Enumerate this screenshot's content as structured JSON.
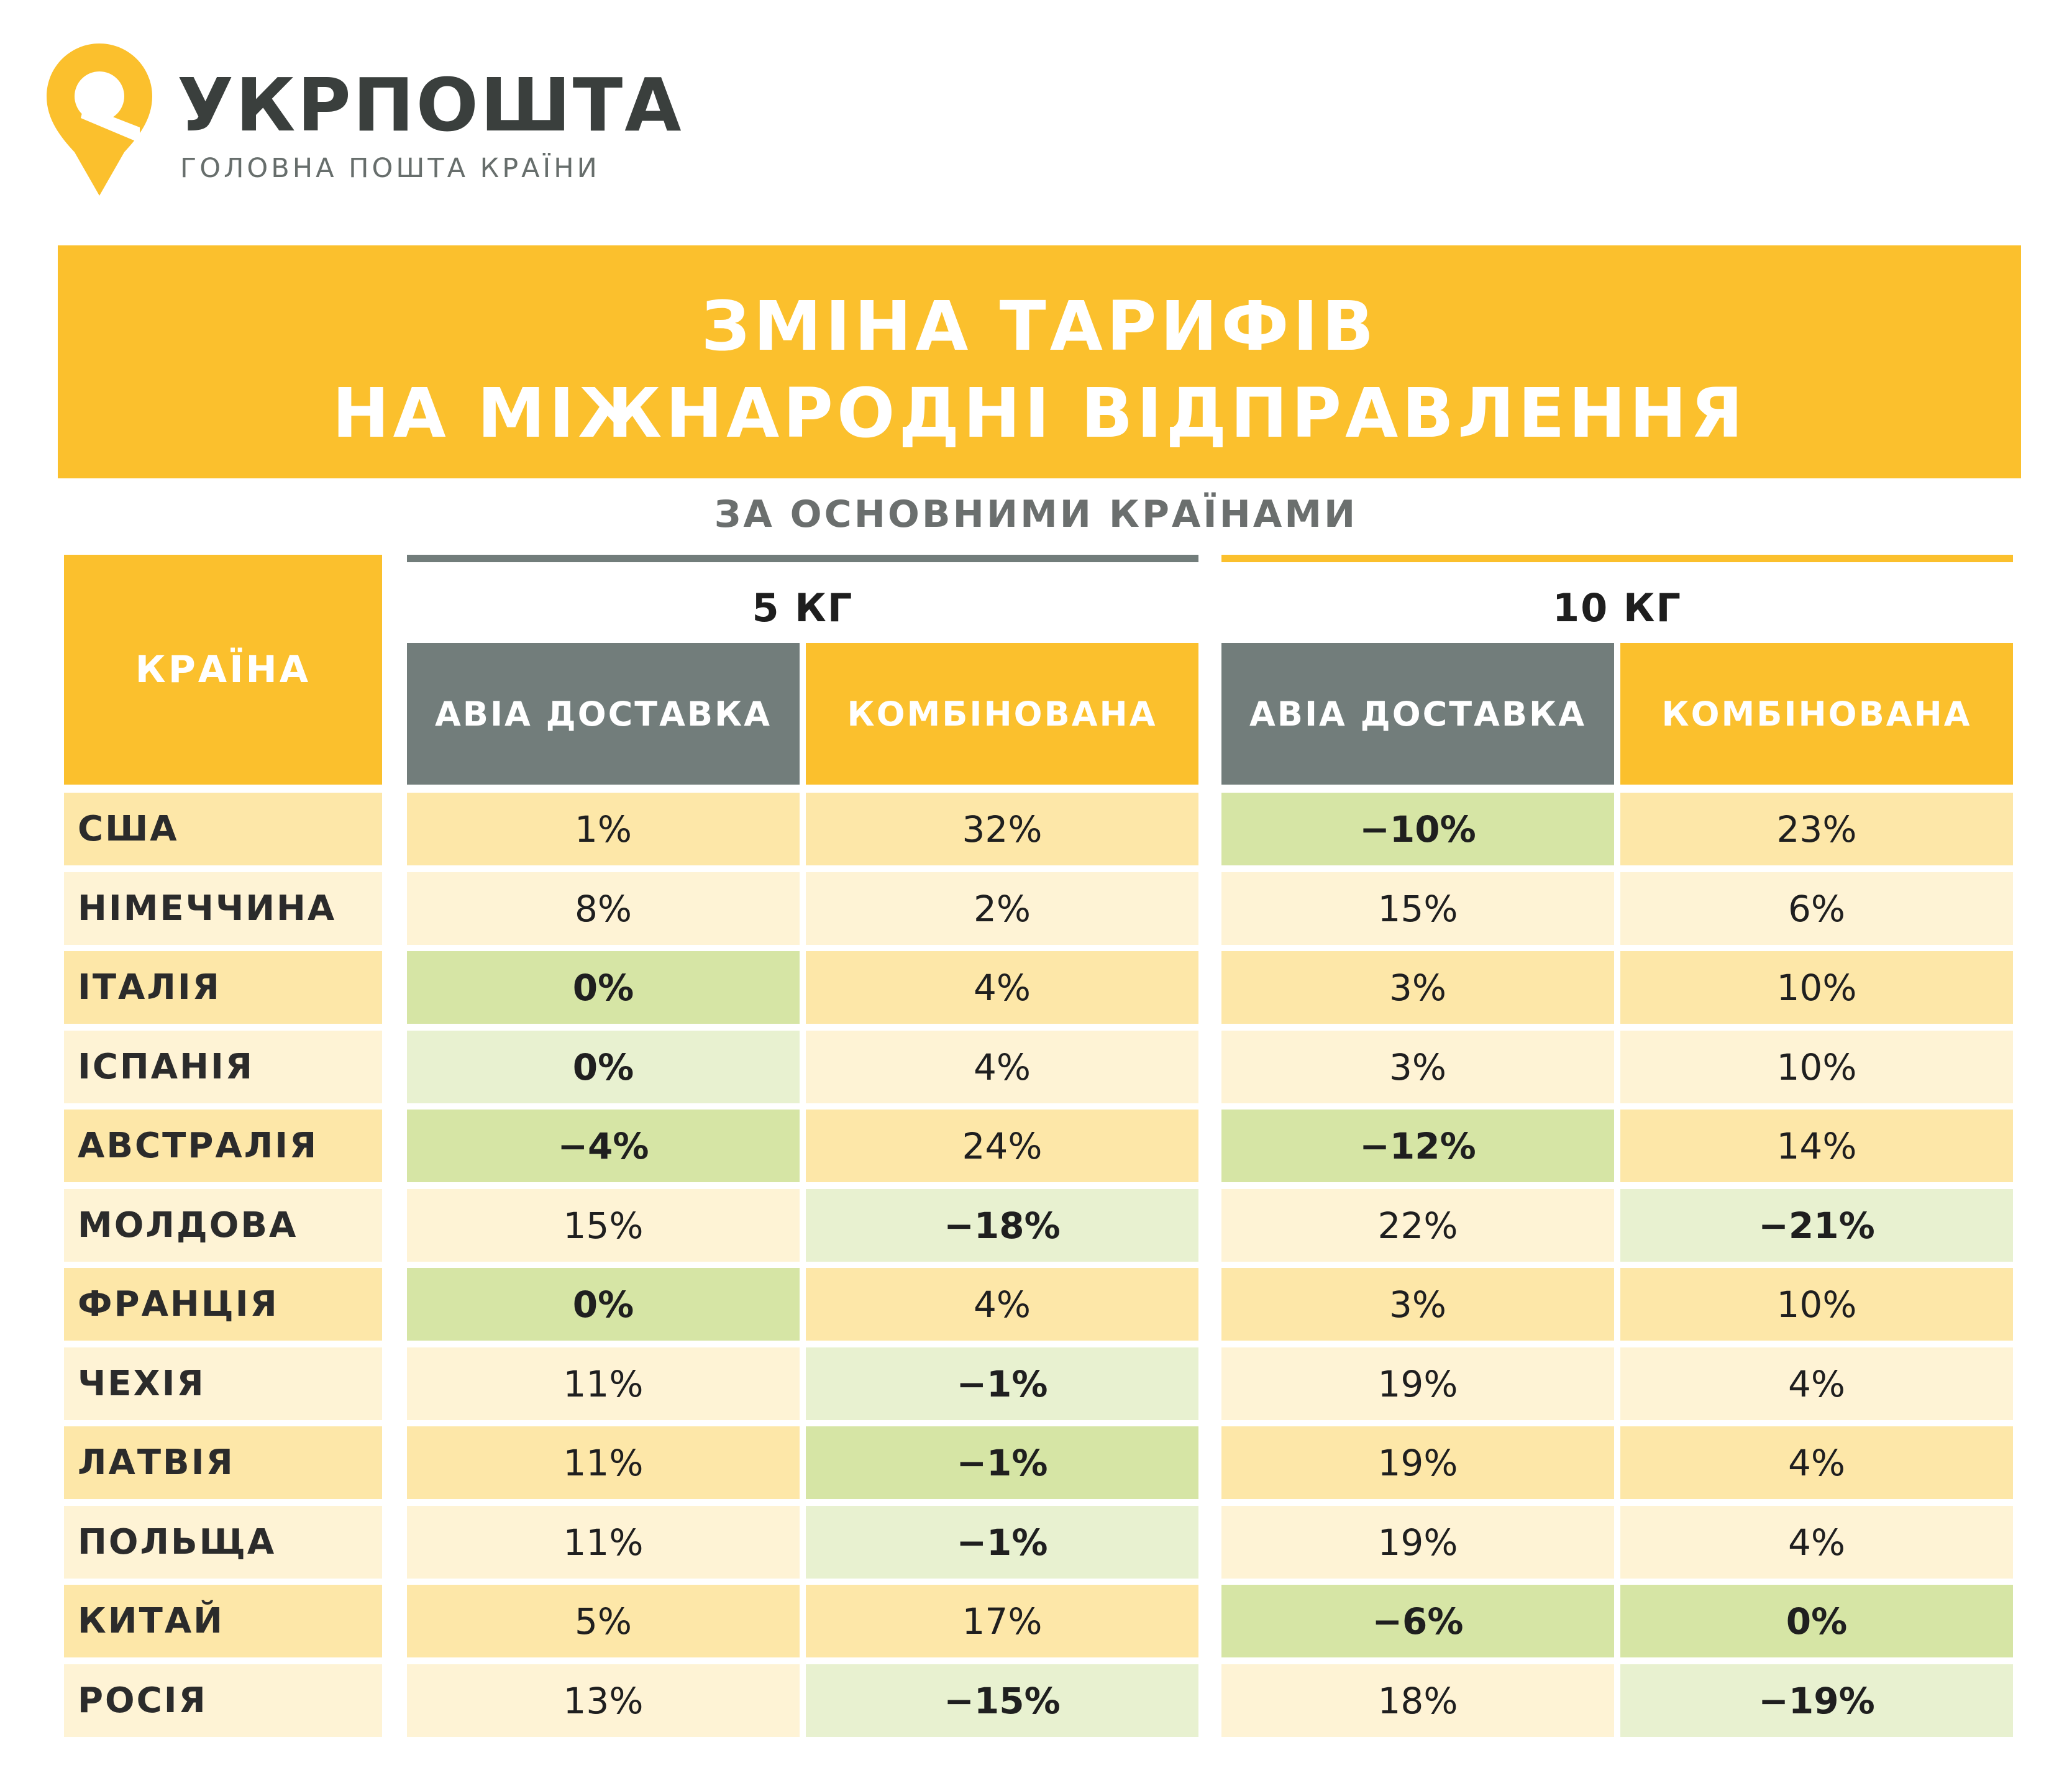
{
  "brand": {
    "name": "УКРПОШТА",
    "slogan": "ГОЛОВНА ПОШТА КРАЇНИ"
  },
  "title": {
    "line1": "ЗМІНА ТАРИФІВ",
    "line2": "НА МІЖНАРОДНІ ВІДПРАВЛЕННЯ"
  },
  "subtitle": "ЗА ОСНОВНИМИ КРАЇНАМИ",
  "table": {
    "country_header": "КРАЇНА",
    "groups": [
      {
        "label": "5 КГ",
        "bar_color": "#727d7b"
      },
      {
        "label": "10 КГ",
        "bar_color": "#fbc02d"
      }
    ],
    "columns": [
      "АВІА ДОСТАВКА",
      "КОМБІНОВАНА",
      "АВІА ДОСТАВКА",
      "КОМБІНОВАНА"
    ],
    "colors": {
      "grey_header": "#727d7b",
      "yellow_header": "#fbc02d",
      "positive_dark": "#fde7a8",
      "positive_light": "#fef3d5",
      "negative_dark": "#d6e5a5",
      "negative_light": "#e8f1d0"
    },
    "rows": [
      {
        "country": "США",
        "values": [
          "1%",
          "32%",
          "−10%",
          "23%"
        ]
      },
      {
        "country": "НІМЕЧЧИНА",
        "values": [
          "8%",
          "2%",
          "15%",
          "6%"
        ]
      },
      {
        "country": "ІТАЛІЯ",
        "values": [
          "0%",
          "4%",
          "3%",
          "10%"
        ]
      },
      {
        "country": "ІСПАНІЯ",
        "values": [
          "0%",
          "4%",
          "3%",
          "10%"
        ]
      },
      {
        "country": "АВСТРАЛІЯ",
        "values": [
          "−4%",
          "24%",
          "−12%",
          "14%"
        ]
      },
      {
        "country": "МОЛДОВА",
        "values": [
          "15%",
          "−18%",
          "22%",
          "−21%"
        ]
      },
      {
        "country": "ФРАНЦІЯ",
        "values": [
          "0%",
          "4%",
          "3%",
          "10%"
        ]
      },
      {
        "country": "ЧЕХІЯ",
        "values": [
          "11%",
          "−1%",
          "19%",
          "4%"
        ]
      },
      {
        "country": "ЛАТВІЯ",
        "values": [
          "11%",
          "−1%",
          "19%",
          "4%"
        ]
      },
      {
        "country": "ПОЛЬЩА",
        "values": [
          "11%",
          "−1%",
          "19%",
          "4%"
        ]
      },
      {
        "country": "КИТАЙ",
        "values": [
          "5%",
          "17%",
          "−6%",
          "0%"
        ]
      },
      {
        "country": "РОСІЯ",
        "values": [
          "13%",
          "−15%",
          "18%",
          "−19%"
        ]
      }
    ]
  }
}
